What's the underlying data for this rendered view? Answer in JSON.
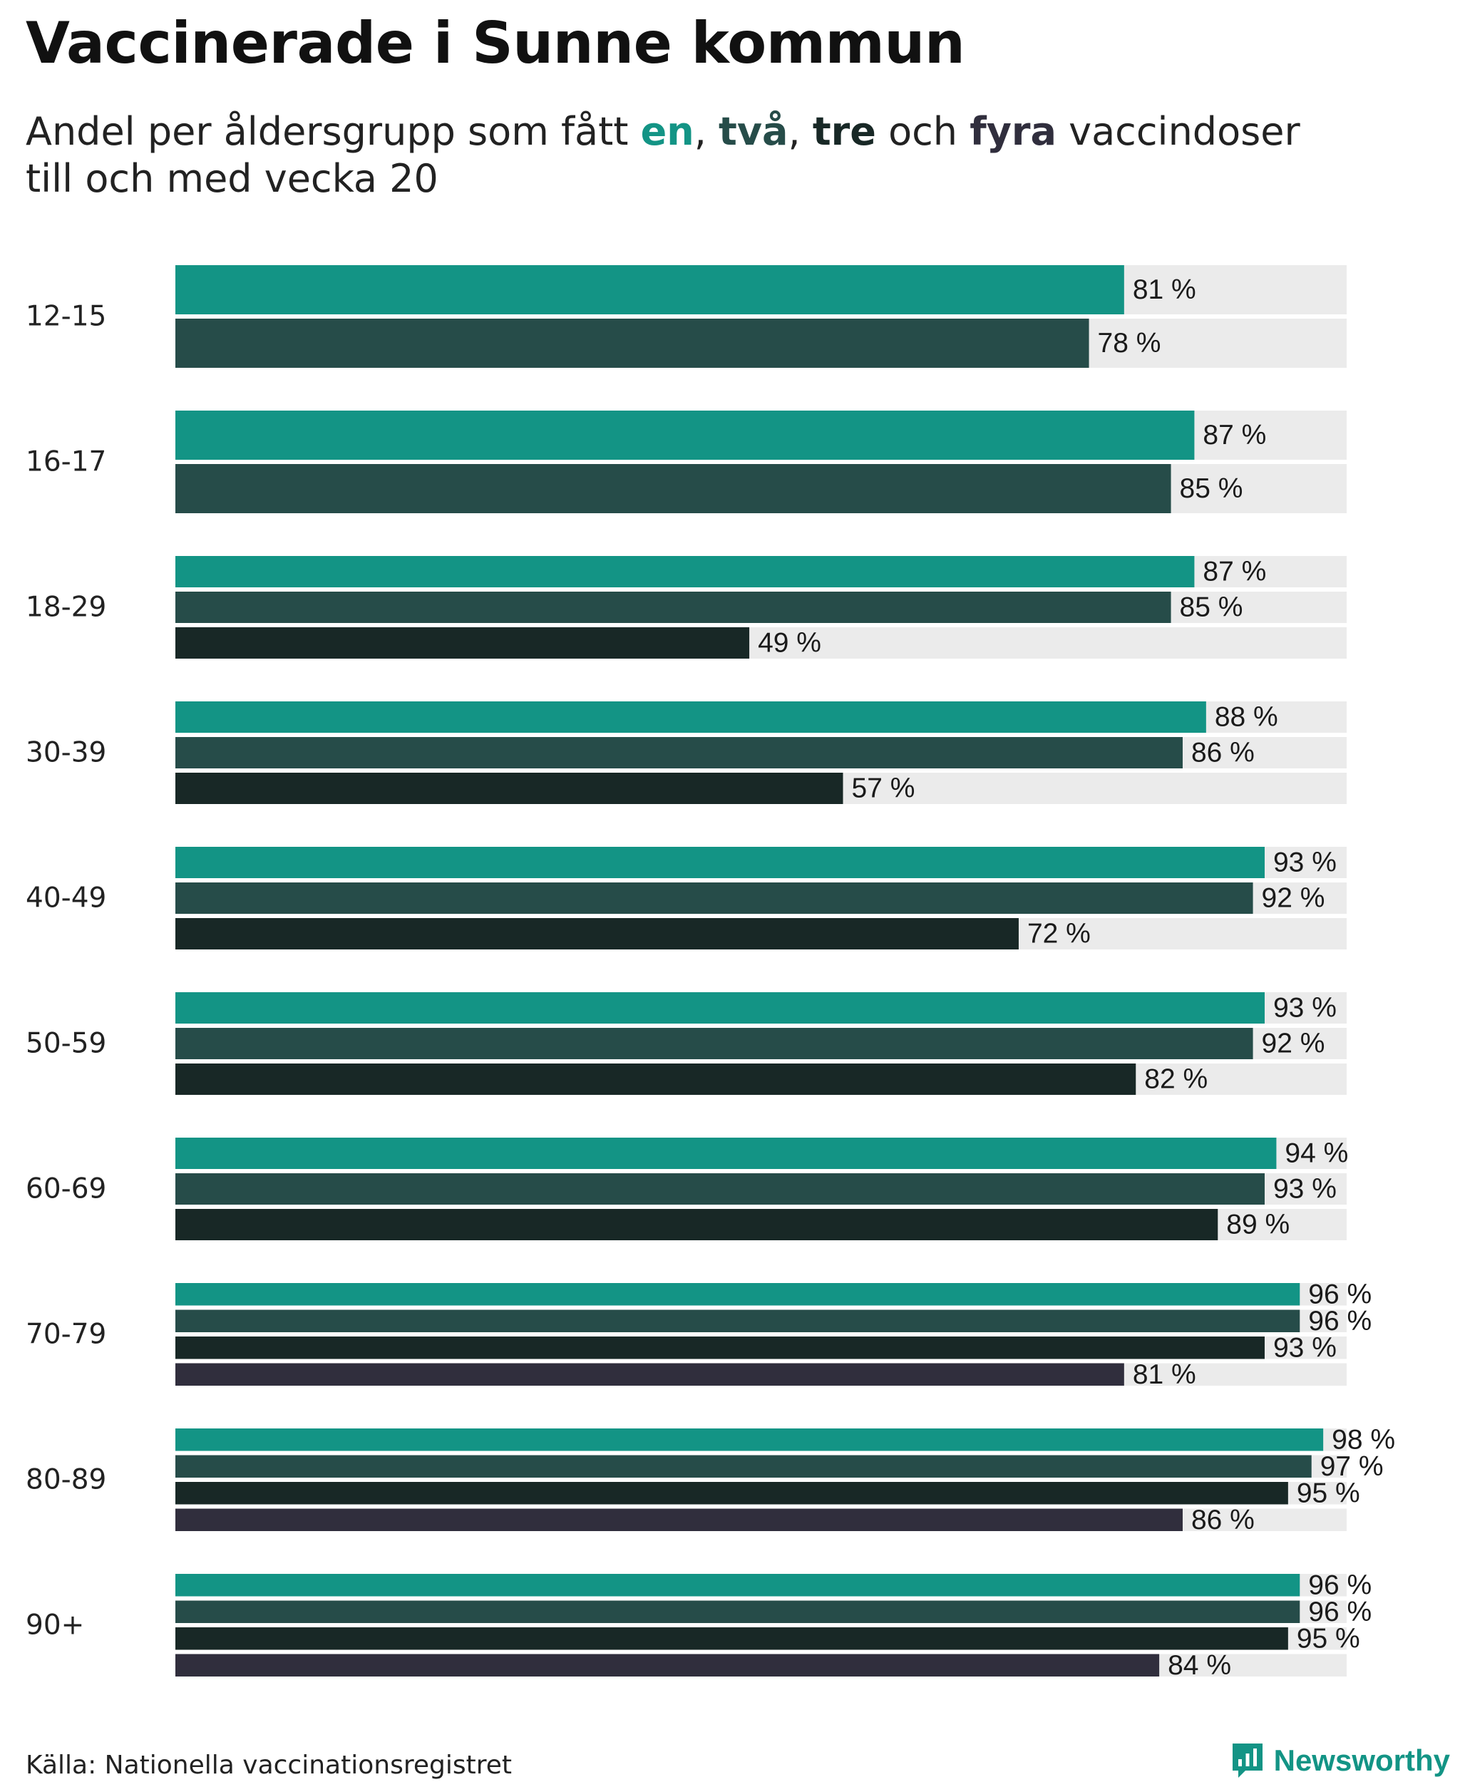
{
  "title": "Vaccinerade i Sunne kommun",
  "subtitle": {
    "prefix": "Andel per åldersgrupp som fått ",
    "k1": "en",
    "sep1": ", ",
    "k2": "två",
    "sep2": ", ",
    "k3": "tre",
    "sep3": " och ",
    "k4": "fyra",
    "suffix": " vaccindoser",
    "line2": "till och med vecka 20"
  },
  "colors": {
    "dose1": "#139485",
    "dose2": "#264c49",
    "dose3": "#182826",
    "dose4": "#302e3d",
    "track": "#ebebeb"
  },
  "chart_data": {
    "type": "bar",
    "orientation": "horizontal",
    "title": "Vaccinerade i Sunne kommun",
    "categories": [
      "12-15",
      "16-17",
      "18-29",
      "30-39",
      "40-49",
      "50-59",
      "60-69",
      "70-79",
      "80-89",
      "90+"
    ],
    "series": [
      {
        "name": "en",
        "values": [
          81,
          87,
          87,
          88,
          93,
          93,
          94,
          96,
          98,
          96
        ]
      },
      {
        "name": "två",
        "values": [
          78,
          85,
          85,
          86,
          92,
          92,
          93,
          96,
          97,
          96
        ]
      },
      {
        "name": "tre",
        "values": [
          null,
          null,
          49,
          57,
          72,
          82,
          89,
          93,
          95,
          95
        ]
      },
      {
        "name": "fyra",
        "values": [
          null,
          null,
          null,
          null,
          null,
          null,
          null,
          81,
          86,
          84
        ]
      }
    ],
    "value_suffix": " %",
    "xlim": [
      0,
      100
    ],
    "xlabel": "",
    "ylabel": ""
  },
  "footer": {
    "source": "Källa: Nationella vaccinationsregistret",
    "brand": "Newsworthy",
    "brand_icon": "newsworthy-logo-icon"
  }
}
